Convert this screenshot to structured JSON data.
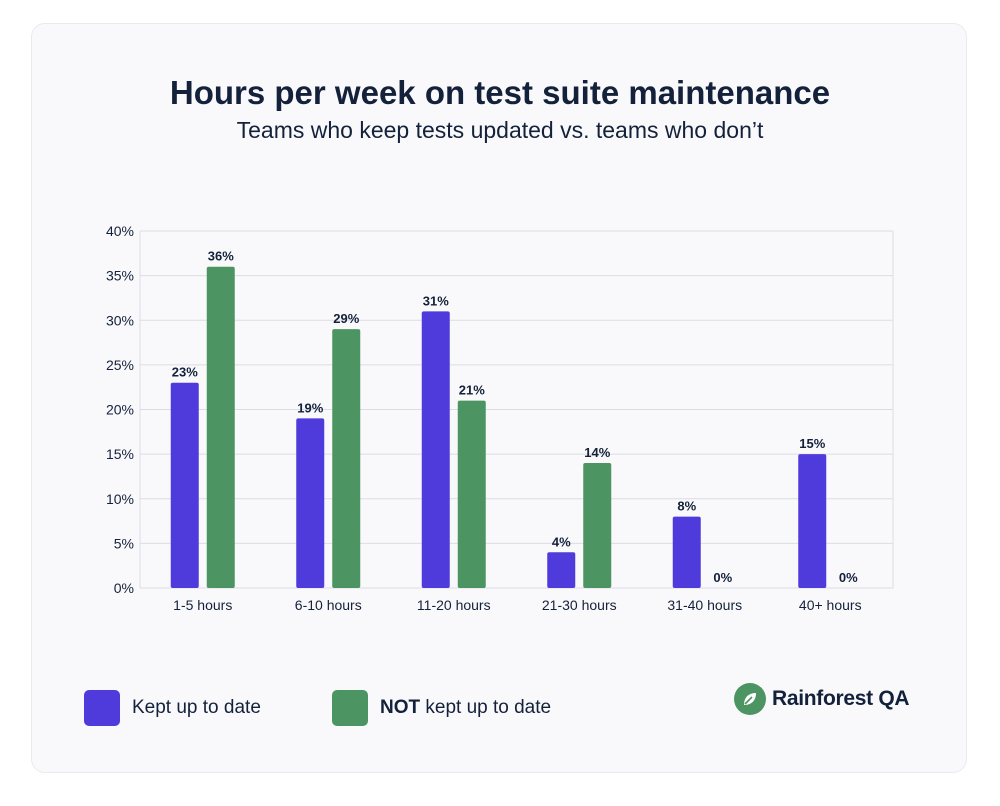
{
  "chart_data": {
    "type": "bar",
    "title": "Hours per week on test suite maintenance",
    "subtitle": "Teams who keep tests updated vs. teams who don’t",
    "xlabel": "",
    "ylabel": "",
    "ylim": [
      0,
      40
    ],
    "yticks": [
      "0%",
      "5%",
      "10%",
      "15%",
      "20%",
      "25%",
      "30%",
      "35%",
      "40%"
    ],
    "ytick_values": [
      0,
      5,
      10,
      15,
      20,
      25,
      30,
      35,
      40
    ],
    "grid": true,
    "categories": [
      "1-5 hours",
      "6-10 hours",
      "11-20 hours",
      "21-30 hours",
      "31-40 hours",
      "40+ hours"
    ],
    "series": [
      {
        "name": "Kept up to date",
        "color": "#4f3bdb",
        "values": [
          23,
          19,
          31,
          4,
          8,
          15
        ],
        "labels": [
          "23%",
          "19%",
          "31%",
          "4%",
          "8%",
          "15%"
        ]
      },
      {
        "name": "NOT kept up to date",
        "color": "#4c9562",
        "values": [
          36,
          29,
          21,
          14,
          0,
          0
        ],
        "labels": [
          "36%",
          "29%",
          "21%",
          "14%",
          "0%",
          "0%"
        ]
      }
    ],
    "legend_position": "bottom-left"
  },
  "legend": {
    "kept": "Kept up to date",
    "not_bold": "NOT",
    "not_rest": " kept up to date"
  },
  "logo": {
    "text": "Rainforest QA",
    "icon": "leaf-icon"
  },
  "colors": {
    "purple": "#4f3bdb",
    "green": "#4c9562",
    "text": "#14213a"
  }
}
